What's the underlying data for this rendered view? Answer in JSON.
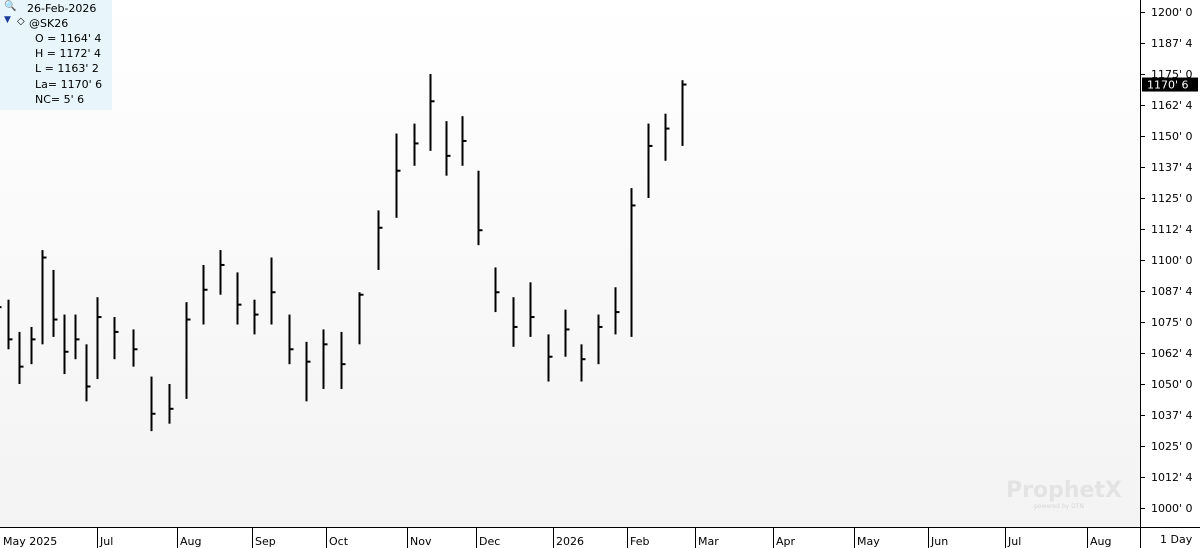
{
  "header": {
    "date": "26-Feb-2026",
    "symbol": "@SK26",
    "quote_lines": [
      "O = 1164' 4",
      "H = 1172' 4",
      "L = 1163' 2",
      "La= 1170' 6",
      "NC= 5' 6"
    ]
  },
  "watermark": {
    "brand": "ProphetX",
    "sub": "powered by DTN"
  },
  "timeframe": "1 Day",
  "colors": {
    "bars": "#000000",
    "info_bg": "#e8f6fb",
    "last_price_bg": "#000000",
    "last_price_text": "#ffffff"
  },
  "icons": [
    "search-icon",
    "triangle-down-icon",
    "diamond-icon"
  ],
  "chart_data": {
    "type": "ohlc",
    "title": "@SK26",
    "y_ticks": [
      "1200' 0",
      "1187' 4",
      "1175' 0",
      "1162' 4",
      "1150' 0",
      "1137' 4",
      "1125' 0",
      "1112' 4",
      "1100' 0",
      "1087' 4",
      "1075' 0",
      "1062' 4",
      "1050' 0",
      "1037' 4",
      "1025' 0",
      "1012' 4",
      "1000' 0"
    ],
    "ylim": [
      995,
      1200
    ],
    "x_labels": [
      "May 2025",
      "Jul",
      "Aug",
      "Sep",
      "Oct",
      "Nov",
      "Dec",
      "2026",
      "Feb",
      "Mar",
      "Apr",
      "May",
      "Jun",
      "Jul",
      "Aug"
    ],
    "last_price_label": "1170' 6",
    "last_price": 1170.75,
    "bars": [
      {
        "date": "2025-04-28",
        "high": 1086,
        "low": 1072,
        "close": 1081
      },
      {
        "date": "2025-05-05",
        "high": 1084,
        "low": 1064,
        "close": 1068
      },
      {
        "date": "2025-05-12",
        "high": 1071,
        "low": 1050,
        "close": 1057
      },
      {
        "date": "2025-05-19",
        "high": 1073,
        "low": 1058,
        "close": 1068
      },
      {
        "date": "2025-05-26",
        "high": 1104,
        "low": 1066,
        "close": 1101
      },
      {
        "date": "2025-06-02",
        "high": 1096,
        "low": 1069,
        "close": 1076
      },
      {
        "date": "2025-06-09",
        "high": 1078,
        "low": 1054,
        "close": 1063
      },
      {
        "date": "2025-06-16",
        "high": 1078,
        "low": 1060,
        "close": 1068
      },
      {
        "date": "2025-06-23",
        "high": 1066,
        "low": 1043,
        "close": 1049
      },
      {
        "date": "2025-06-30",
        "high": 1085,
        "low": 1052,
        "close": 1077
      },
      {
        "date": "2025-07-07",
        "high": 1077,
        "low": 1060,
        "close": 1071
      },
      {
        "date": "2025-07-14",
        "high": 1072,
        "low": 1057,
        "close": 1064
      },
      {
        "date": "2025-07-21",
        "high": 1053,
        "low": 1031,
        "close": 1038
      },
      {
        "date": "2025-07-28",
        "high": 1050,
        "low": 1034,
        "close": 1040
      },
      {
        "date": "2025-08-04",
        "high": 1083,
        "low": 1044,
        "close": 1076
      },
      {
        "date": "2025-08-11",
        "high": 1098,
        "low": 1074,
        "close": 1088
      },
      {
        "date": "2025-08-18",
        "high": 1104,
        "low": 1086,
        "close": 1098
      },
      {
        "date": "2025-08-25",
        "high": 1095,
        "low": 1074,
        "close": 1082
      },
      {
        "date": "2025-09-01",
        "high": 1084,
        "low": 1070,
        "close": 1078
      },
      {
        "date": "2025-09-08",
        "high": 1101,
        "low": 1074,
        "close": 1087
      },
      {
        "date": "2025-09-15",
        "high": 1078,
        "low": 1058,
        "close": 1064
      },
      {
        "date": "2025-09-22",
        "high": 1067,
        "low": 1043,
        "close": 1059
      },
      {
        "date": "2025-09-29",
        "high": 1072,
        "low": 1048,
        "close": 1066
      },
      {
        "date": "2025-10-06",
        "high": 1071,
        "low": 1048,
        "close": 1058
      },
      {
        "date": "2025-10-13",
        "high": 1087,
        "low": 1066,
        "close": 1086
      },
      {
        "date": "2025-10-20",
        "high": 1120,
        "low": 1096,
        "close": 1113
      },
      {
        "date": "2025-10-27",
        "high": 1151,
        "low": 1117,
        "close": 1136
      },
      {
        "date": "2025-11-03",
        "high": 1155,
        "low": 1138,
        "close": 1147
      },
      {
        "date": "2025-11-10",
        "high": 1175,
        "low": 1144,
        "close": 1164
      },
      {
        "date": "2025-11-17",
        "high": 1156,
        "low": 1134,
        "close": 1142
      },
      {
        "date": "2025-11-24",
        "high": 1158,
        "low": 1138,
        "close": 1148
      },
      {
        "date": "2025-12-01",
        "high": 1136,
        "low": 1106,
        "close": 1112
      },
      {
        "date": "2025-12-08",
        "high": 1097,
        "low": 1079,
        "close": 1087
      },
      {
        "date": "2025-12-15",
        "high": 1085,
        "low": 1065,
        "close": 1073
      },
      {
        "date": "2025-12-22",
        "high": 1091,
        "low": 1069,
        "close": 1077
      },
      {
        "date": "2025-12-29",
        "high": 1070,
        "low": 1051,
        "close": 1061
      },
      {
        "date": "2026-01-05",
        "high": 1080,
        "low": 1061,
        "close": 1072
      },
      {
        "date": "2026-01-12",
        "high": 1066,
        "low": 1051,
        "close": 1060
      },
      {
        "date": "2026-01-19",
        "high": 1078,
        "low": 1058,
        "close": 1073
      },
      {
        "date": "2026-01-26",
        "high": 1089,
        "low": 1070,
        "close": 1079
      },
      {
        "date": "2026-02-02",
        "high": 1129,
        "low": 1069,
        "close": 1122
      },
      {
        "date": "2026-02-09",
        "high": 1155,
        "low": 1125,
        "close": 1146
      },
      {
        "date": "2026-02-16",
        "high": 1159,
        "low": 1140,
        "close": 1153
      },
      {
        "date": "2026-02-23",
        "high": 1172.5,
        "low": 1146,
        "close": 1170.75
      }
    ]
  }
}
